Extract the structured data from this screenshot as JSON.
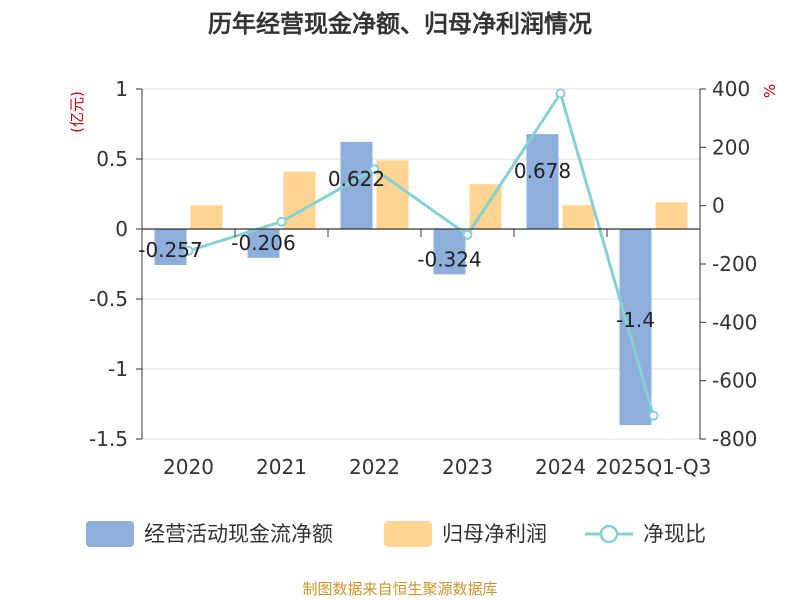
{
  "chart_data": {
    "type": "bar",
    "title": "历年经营现金净额、归母净利润情况",
    "categories": [
      "2020",
      "2021",
      "2022",
      "2023",
      "2024",
      "2025Q1-Q3"
    ],
    "y_left_unit": "(亿元)",
    "y_right_unit": "%",
    "y_left_range": [
      -1.5,
      1
    ],
    "y_left_ticks": [
      "1",
      "0.5",
      "0",
      "-0.5",
      "-1",
      "-1.5"
    ],
    "y_right_range": [
      -800,
      400
    ],
    "y_right_ticks": [
      "400",
      "200",
      "0",
      "-200",
      "-400",
      "-600",
      "-800"
    ],
    "series": [
      {
        "name": "经营活动现金流净额",
        "kind": "bar",
        "axis": "left",
        "color": "#8eaedc",
        "values": [
          -0.257,
          -0.206,
          0.622,
          -0.324,
          0.678,
          -1.4
        ],
        "labels": [
          "-0.257",
          "-0.206",
          "0.622",
          "-0.324",
          "0.678",
          "-1.4"
        ]
      },
      {
        "name": "归母净利润",
        "kind": "bar",
        "axis": "left",
        "color": "#ffd591",
        "values": [
          0.17,
          0.41,
          0.49,
          0.32,
          0.17,
          0.19
        ]
      },
      {
        "name": "净现比",
        "kind": "line",
        "axis": "right",
        "color": "#86d0d6",
        "values": [
          -155,
          -55,
          125,
          -100,
          385,
          -720
        ]
      }
    ],
    "grid": true,
    "legend_position": "bottom"
  },
  "source_text": "制图数据来自恒生聚源数据库"
}
